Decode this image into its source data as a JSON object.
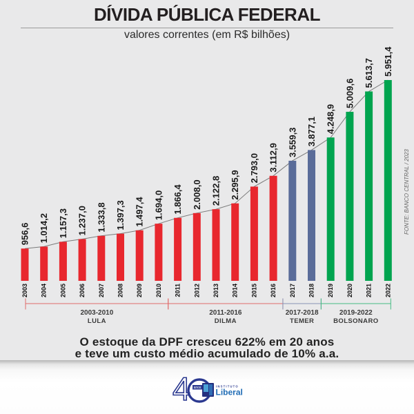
{
  "header": {
    "title": "DÍVIDA PÚBLICA FEDERAL",
    "subtitle": "valores correntes (em R$ bilhões)"
  },
  "source_note": "FONTE: BANCO CENTRAL / 2023",
  "chart_data": {
    "type": "bar",
    "title": "DÍVIDA PÚBLICA FEDERAL",
    "subtitle": "valores correntes (em R$ bilhões)",
    "unit": "R$ bilhões",
    "categories": [
      "2003",
      "2004",
      "2005",
      "2006",
      "2007",
      "2008",
      "2009",
      "2010",
      "2011",
      "2012",
      "2013",
      "2014",
      "2015",
      "2016",
      "2017",
      "2018",
      "2019",
      "2020",
      "2021",
      "2022"
    ],
    "values": [
      956.6,
      1014.2,
      1157.3,
      1237.0,
      1333.8,
      1397.3,
      1497.4,
      1694.0,
      1866.4,
      2008.0,
      2122.8,
      2295.9,
      2793.0,
      3112.9,
      3559.3,
      3877.1,
      4248.9,
      5009.6,
      5613.7,
      5951.4
    ],
    "value_labels": [
      "956,6",
      "1.014,2",
      "1.157,3",
      "1.237,0",
      "1.333,8",
      "1.397,3",
      "1.497,4",
      "1.694,0",
      "1.866,4",
      "2.008,0",
      "2.122,8",
      "2.295,9",
      "2.793,0",
      "3.112,9",
      "3.559,3",
      "3.877,1",
      "4.248,9",
      "5.009,6",
      "5.613,7",
      "5.951,4"
    ],
    "ylim": [
      0,
      5951.4
    ],
    "grid": false,
    "legend": "none",
    "trend_line": true,
    "trend_line_color": "#7a7a7a",
    "label_color": "#1a1a1a",
    "era_label_color": "#3a3a3a",
    "eras": [
      {
        "years": "2003-2010",
        "name": "LULA",
        "from": "2003",
        "to": "2010",
        "bar_color": "#e8272e",
        "bracket_color": "#e06a6a"
      },
      {
        "years": "2011-2016",
        "name": "DILMA",
        "from": "2011",
        "to": "2016",
        "bar_color": "#e8272e",
        "bracket_color": "#e06a6a"
      },
      {
        "years": "2017-2018",
        "name": "TEMER",
        "from": "2017",
        "to": "2018",
        "bar_color": "#5a6c99",
        "bracket_color": "#8793b4"
      },
      {
        "years": "2019-2022",
        "name": "BOLSONARO",
        "from": "2019",
        "to": "2022",
        "bar_color": "#00a44f",
        "bracket_color": "#45bb82"
      }
    ]
  },
  "summary": {
    "line1": "O estoque da DPF cresceu 622% em 20 anos",
    "line2": "e teve um custo médio acumulado de 10% a.a."
  },
  "footer_logo": {
    "number": "40",
    "digit": "4",
    "anos": "anos",
    "institution": "INSTITUTO",
    "name": "Liberal",
    "navy": "#2b3990",
    "blue": "#1f6cb5",
    "light_blue": "#4aa0d5"
  }
}
